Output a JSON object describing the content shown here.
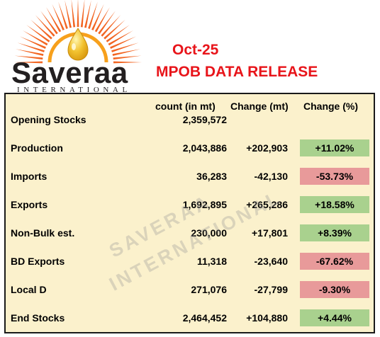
{
  "logo": {
    "word": "Saveraa",
    "sub": "INTERNATIONAL"
  },
  "header": {
    "date": "Oct-25",
    "title": "MPOB DATA RELEASE"
  },
  "columns": {
    "count": "count (in mt)",
    "change": "Change (mt)",
    "change_pct": "Change (%)"
  },
  "rows": [
    {
      "label": "Opening Stocks",
      "count": "2,359,572",
      "change": "",
      "change_pct": "",
      "trend": "none"
    },
    {
      "label": "Production",
      "count": "2,043,886",
      "change": "+202,903",
      "change_pct": "+11.02%",
      "trend": "up"
    },
    {
      "label": "Imports",
      "count": "36,283",
      "change": "-42,130",
      "change_pct": "-53.73%",
      "trend": "down"
    },
    {
      "label": "Exports",
      "count": "1,692,895",
      "change": "+265,286",
      "change_pct": "+18.58%",
      "trend": "up"
    },
    {
      "label": "Non-Bulk est.",
      "count": "230,000",
      "change": "+17,801",
      "change_pct": "+8.39%",
      "trend": "up"
    },
    {
      "label": "BD Exports",
      "count": "11,318",
      "change": "-23,640",
      "change_pct": "-67.62%",
      "trend": "down"
    },
    {
      "label": "Local D",
      "count": "271,076",
      "change": "-27,799",
      "change_pct": "-9.30%",
      "trend": "down"
    },
    {
      "label": "End Stocks",
      "count": "2,464,452",
      "change": "+104,880",
      "change_pct": "+4.44%",
      "trend": "up"
    }
  ],
  "watermark": {
    "line1": "SAVERAA",
    "line2": "INTERNATIONAL"
  },
  "colors": {
    "header_red": "#e8141a",
    "panel_bg": "#fbf1cc",
    "positive": "#a9d18e",
    "negative": "#e89a9a",
    "sun_orange": "#f26522",
    "drop_gold": "#f2c230"
  }
}
